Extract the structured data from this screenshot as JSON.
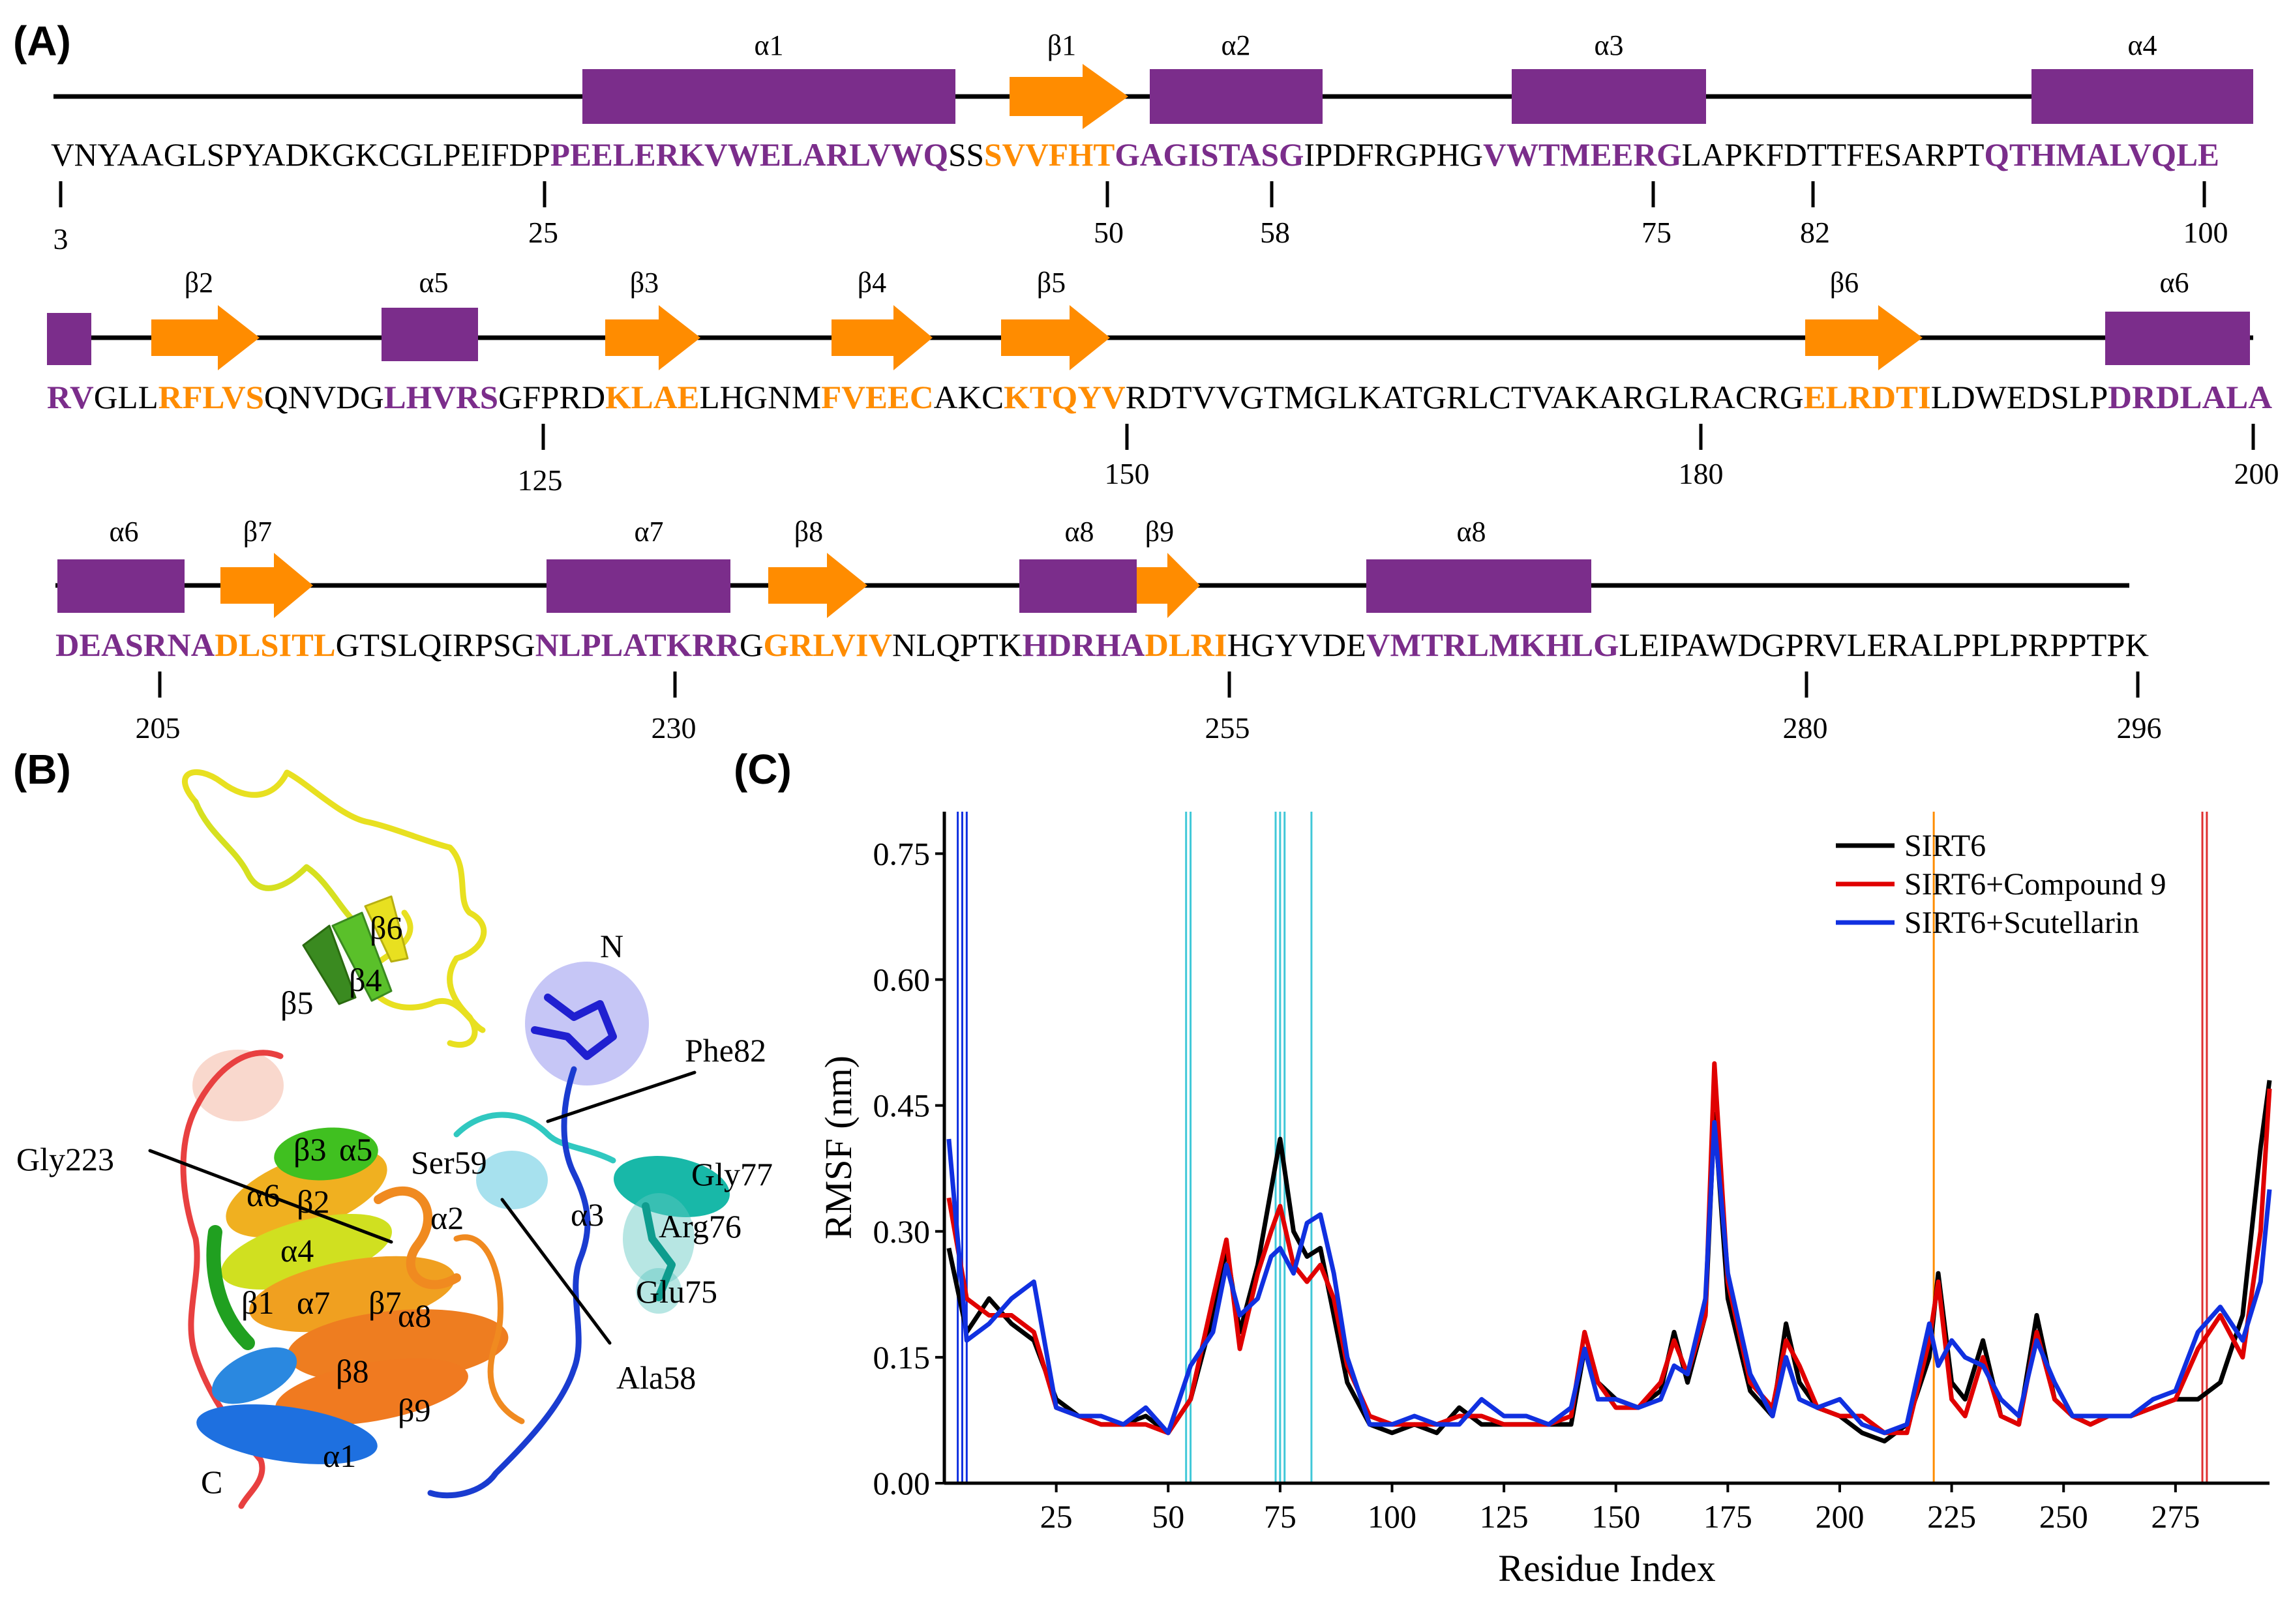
{
  "panels": {
    "a": "(A)",
    "b": "(B)",
    "c": "(C)"
  },
  "colors": {
    "helix": "#7b2d8b",
    "strand": "#ff8c00",
    "sirt6": "#000000",
    "cmp9": "#e00000",
    "scut": "#1030e0",
    "cyan_line": "#40c8d8",
    "orange_line": "#ff8c00",
    "red_line": "#e03030",
    "blue_line": "#1030e0"
  },
  "sequence_rows": [
    {
      "segments": [
        {
          "t": "VNYAAGLSPYADKGKCGLPEIFDP",
          "s": "c"
        },
        {
          "t": "PEELERKVWELARLVWQ",
          "s": "h"
        },
        {
          "t": "SS",
          "s": "c"
        },
        {
          "t": "SVVFHT",
          "s": "e"
        },
        {
          "t": "GAGISTASG",
          "s": "h"
        },
        {
          "t": "IPDFRGPHG",
          "s": "c"
        },
        {
          "t": "VWTMEERG",
          "s": "h"
        },
        {
          "t": "LAPKFDTTFESARPT",
          "s": "c"
        },
        {
          "t": "QTHMALVQLE",
          "s": "h"
        }
      ],
      "ticks": [
        "3",
        "25",
        "50",
        "58",
        "75",
        "82",
        "100"
      ],
      "ss": [
        {
          "type": "helix",
          "label": "α1"
        },
        {
          "type": "strand",
          "label": "β1"
        },
        {
          "type": "helix",
          "label": "α2"
        },
        {
          "type": "helix",
          "label": "α3"
        },
        {
          "type": "helix",
          "label": "α4"
        }
      ]
    },
    {
      "segments": [
        {
          "t": "RV",
          "s": "h"
        },
        {
          "t": "GLL",
          "s": "c"
        },
        {
          "t": "RFLVS",
          "s": "e"
        },
        {
          "t": "QNVDG",
          "s": "c"
        },
        {
          "t": "LHVRS",
          "s": "h"
        },
        {
          "t": "GFPRD",
          "s": "c"
        },
        {
          "t": "KLAE",
          "s": "e"
        },
        {
          "t": "LHGNM",
          "s": "c"
        },
        {
          "t": "FVEEC",
          "s": "e"
        },
        {
          "t": "AKC",
          "s": "c"
        },
        {
          "t": "KTQYV",
          "s": "e"
        },
        {
          "t": "RDTVVGTMGLKATGRLCTVAKARGLRACRG",
          "s": "c"
        },
        {
          "t": "ELRDTI",
          "s": "e"
        },
        {
          "t": "LDWEDSLP",
          "s": "c"
        },
        {
          "t": "DRDLALA",
          "s": "h"
        }
      ],
      "ticks": [
        "125",
        "150",
        "180",
        "200"
      ],
      "ss": [
        {
          "type": "helix",
          "label": ""
        },
        {
          "type": "strand",
          "label": "β2"
        },
        {
          "type": "helix",
          "label": "α5"
        },
        {
          "type": "strand",
          "label": "β3"
        },
        {
          "type": "strand",
          "label": "β4"
        },
        {
          "type": "strand",
          "label": "β5"
        },
        {
          "type": "strand",
          "label": "β6"
        },
        {
          "type": "helix",
          "label": "α6"
        }
      ]
    },
    {
      "segments": [
        {
          "t": "DEASRNA",
          "s": "h"
        },
        {
          "t": "DLSITL",
          "s": "e"
        },
        {
          "t": "GTSLQIRPSG",
          "s": "c"
        },
        {
          "t": "NLPLATKRR",
          "s": "h"
        },
        {
          "t": "G",
          "s": "c"
        },
        {
          "t": "GRLVIV",
          "s": "e"
        },
        {
          "t": "NLQPTK",
          "s": "c"
        },
        {
          "t": "HDRHA",
          "s": "h"
        },
        {
          "t": "DLRI",
          "s": "e"
        },
        {
          "t": "HGYVDE",
          "s": "c"
        },
        {
          "t": "VMTRLMKHLG",
          "s": "h"
        },
        {
          "t": "LEIPAWDGPRVLERALPPLPRPPTPK",
          "s": "c"
        }
      ],
      "ticks": [
        "205",
        "230",
        "255",
        "280",
        "296"
      ],
      "ss": [
        {
          "type": "helix",
          "label": "α6"
        },
        {
          "type": "strand",
          "label": "β7"
        },
        {
          "type": "helix",
          "label": "α7"
        },
        {
          "type": "strand",
          "label": "β8"
        },
        {
          "type": "helix",
          "label": "α8"
        },
        {
          "type": "strand",
          "label": "β9"
        },
        {
          "type": "helix",
          "label": "α8"
        }
      ]
    }
  ],
  "structure_labels": {
    "n_term": "N",
    "c_term": "C",
    "b6": "β6",
    "b4": "β4",
    "b5": "β5",
    "b3": "β3",
    "a5": "α5",
    "a6": "α6",
    "b2": "β2",
    "a4": "α4",
    "b1": "β1",
    "a7": "α7",
    "b7": "β7",
    "a8": "α8",
    "b8": "β8",
    "b9": "β9",
    "a1": "α1",
    "a2": "α2",
    "a3": "α3",
    "phe82": "Phe82",
    "gly223": "Gly223",
    "ser59": "Ser59",
    "gly77": "Gly77",
    "arg76": "Arg76",
    "glu75": "Glu75",
    "ala58": "Ala58"
  },
  "chart_data": {
    "type": "line",
    "title": "",
    "xlabel": "Residue Index",
    "ylabel": "RMSF (nm)",
    "xlim": [
      0,
      296
    ],
    "ylim": [
      0,
      0.8
    ],
    "xticks": [
      25,
      50,
      75,
      100,
      125,
      150,
      175,
      200,
      225,
      250,
      275
    ],
    "yticks": [
      0.0,
      0.15,
      0.3,
      0.45,
      0.6,
      0.75
    ],
    "ytick_labels": [
      "0.00",
      "0.15",
      "0.30",
      "0.45",
      "0.60",
      "0.75"
    ],
    "legend_position": "top-right",
    "marker_lines": [
      {
        "x": 3,
        "color": "blue"
      },
      {
        "x": 4,
        "color": "blue"
      },
      {
        "x": 5,
        "color": "blue"
      },
      {
        "x": 54,
        "color": "cyan"
      },
      {
        "x": 55,
        "color": "cyan"
      },
      {
        "x": 74,
        "color": "cyan"
      },
      {
        "x": 75,
        "color": "cyan"
      },
      {
        "x": 76,
        "color": "cyan"
      },
      {
        "x": 82,
        "color": "cyan"
      },
      {
        "x": 221,
        "color": "orange"
      },
      {
        "x": 281,
        "color": "red"
      },
      {
        "x": 282,
        "color": "red"
      }
    ],
    "x": [
      1,
      5,
      10,
      15,
      20,
      25,
      30,
      35,
      40,
      45,
      50,
      55,
      60,
      63,
      66,
      70,
      73,
      75,
      78,
      81,
      84,
      87,
      90,
      95,
      100,
      105,
      110,
      115,
      120,
      125,
      130,
      135,
      140,
      143,
      146,
      150,
      155,
      160,
      163,
      166,
      170,
      172,
      175,
      180,
      185,
      188,
      191,
      195,
      200,
      205,
      210,
      215,
      220,
      222,
      225,
      228,
      232,
      236,
      240,
      244,
      248,
      252,
      256,
      260,
      265,
      270,
      275,
      280,
      285,
      290,
      294,
      296
    ],
    "series": [
      {
        "name": "SIRT6",
        "values": [
          0.28,
          0.18,
          0.22,
          0.19,
          0.17,
          0.1,
          0.08,
          0.07,
          0.07,
          0.08,
          0.06,
          0.1,
          0.2,
          0.28,
          0.18,
          0.26,
          0.35,
          0.41,
          0.3,
          0.27,
          0.28,
          0.2,
          0.12,
          0.07,
          0.06,
          0.07,
          0.06,
          0.09,
          0.07,
          0.07,
          0.07,
          0.07,
          0.07,
          0.16,
          0.12,
          0.1,
          0.09,
          0.11,
          0.18,
          0.12,
          0.2,
          0.44,
          0.22,
          0.11,
          0.08,
          0.19,
          0.12,
          0.09,
          0.08,
          0.06,
          0.05,
          0.07,
          0.15,
          0.25,
          0.12,
          0.1,
          0.17,
          0.08,
          0.07,
          0.2,
          0.1,
          0.08,
          0.07,
          0.08,
          0.08,
          0.09,
          0.1,
          0.1,
          0.12,
          0.2,
          0.4,
          0.48
        ]
      },
      {
        "name": "SIRT6+Compound 9",
        "values": [
          0.34,
          0.22,
          0.2,
          0.2,
          0.18,
          0.09,
          0.08,
          0.07,
          0.07,
          0.07,
          0.06,
          0.1,
          0.22,
          0.29,
          0.16,
          0.25,
          0.3,
          0.33,
          0.26,
          0.24,
          0.26,
          0.22,
          0.14,
          0.08,
          0.07,
          0.07,
          0.07,
          0.08,
          0.08,
          0.07,
          0.07,
          0.07,
          0.08,
          0.18,
          0.12,
          0.09,
          0.09,
          0.12,
          0.17,
          0.13,
          0.2,
          0.5,
          0.24,
          0.12,
          0.09,
          0.17,
          0.14,
          0.09,
          0.08,
          0.08,
          0.06,
          0.06,
          0.17,
          0.24,
          0.1,
          0.08,
          0.15,
          0.08,
          0.07,
          0.18,
          0.1,
          0.08,
          0.07,
          0.08,
          0.08,
          0.09,
          0.1,
          0.16,
          0.2,
          0.15,
          0.3,
          0.47
        ]
      },
      {
        "name": "SIRT6+Scutellarin",
        "values": [
          0.41,
          0.17,
          0.19,
          0.22,
          0.24,
          0.09,
          0.08,
          0.08,
          0.07,
          0.09,
          0.06,
          0.14,
          0.18,
          0.26,
          0.2,
          0.22,
          0.27,
          0.28,
          0.25,
          0.31,
          0.32,
          0.25,
          0.15,
          0.07,
          0.07,
          0.08,
          0.07,
          0.07,
          0.1,
          0.08,
          0.08,
          0.07,
          0.09,
          0.16,
          0.1,
          0.1,
          0.09,
          0.1,
          0.14,
          0.13,
          0.22,
          0.43,
          0.25,
          0.13,
          0.08,
          0.15,
          0.1,
          0.09,
          0.1,
          0.07,
          0.06,
          0.07,
          0.19,
          0.14,
          0.17,
          0.15,
          0.14,
          0.1,
          0.08,
          0.17,
          0.12,
          0.08,
          0.08,
          0.08,
          0.08,
          0.1,
          0.11,
          0.18,
          0.21,
          0.17,
          0.24,
          0.35
        ]
      }
    ]
  }
}
